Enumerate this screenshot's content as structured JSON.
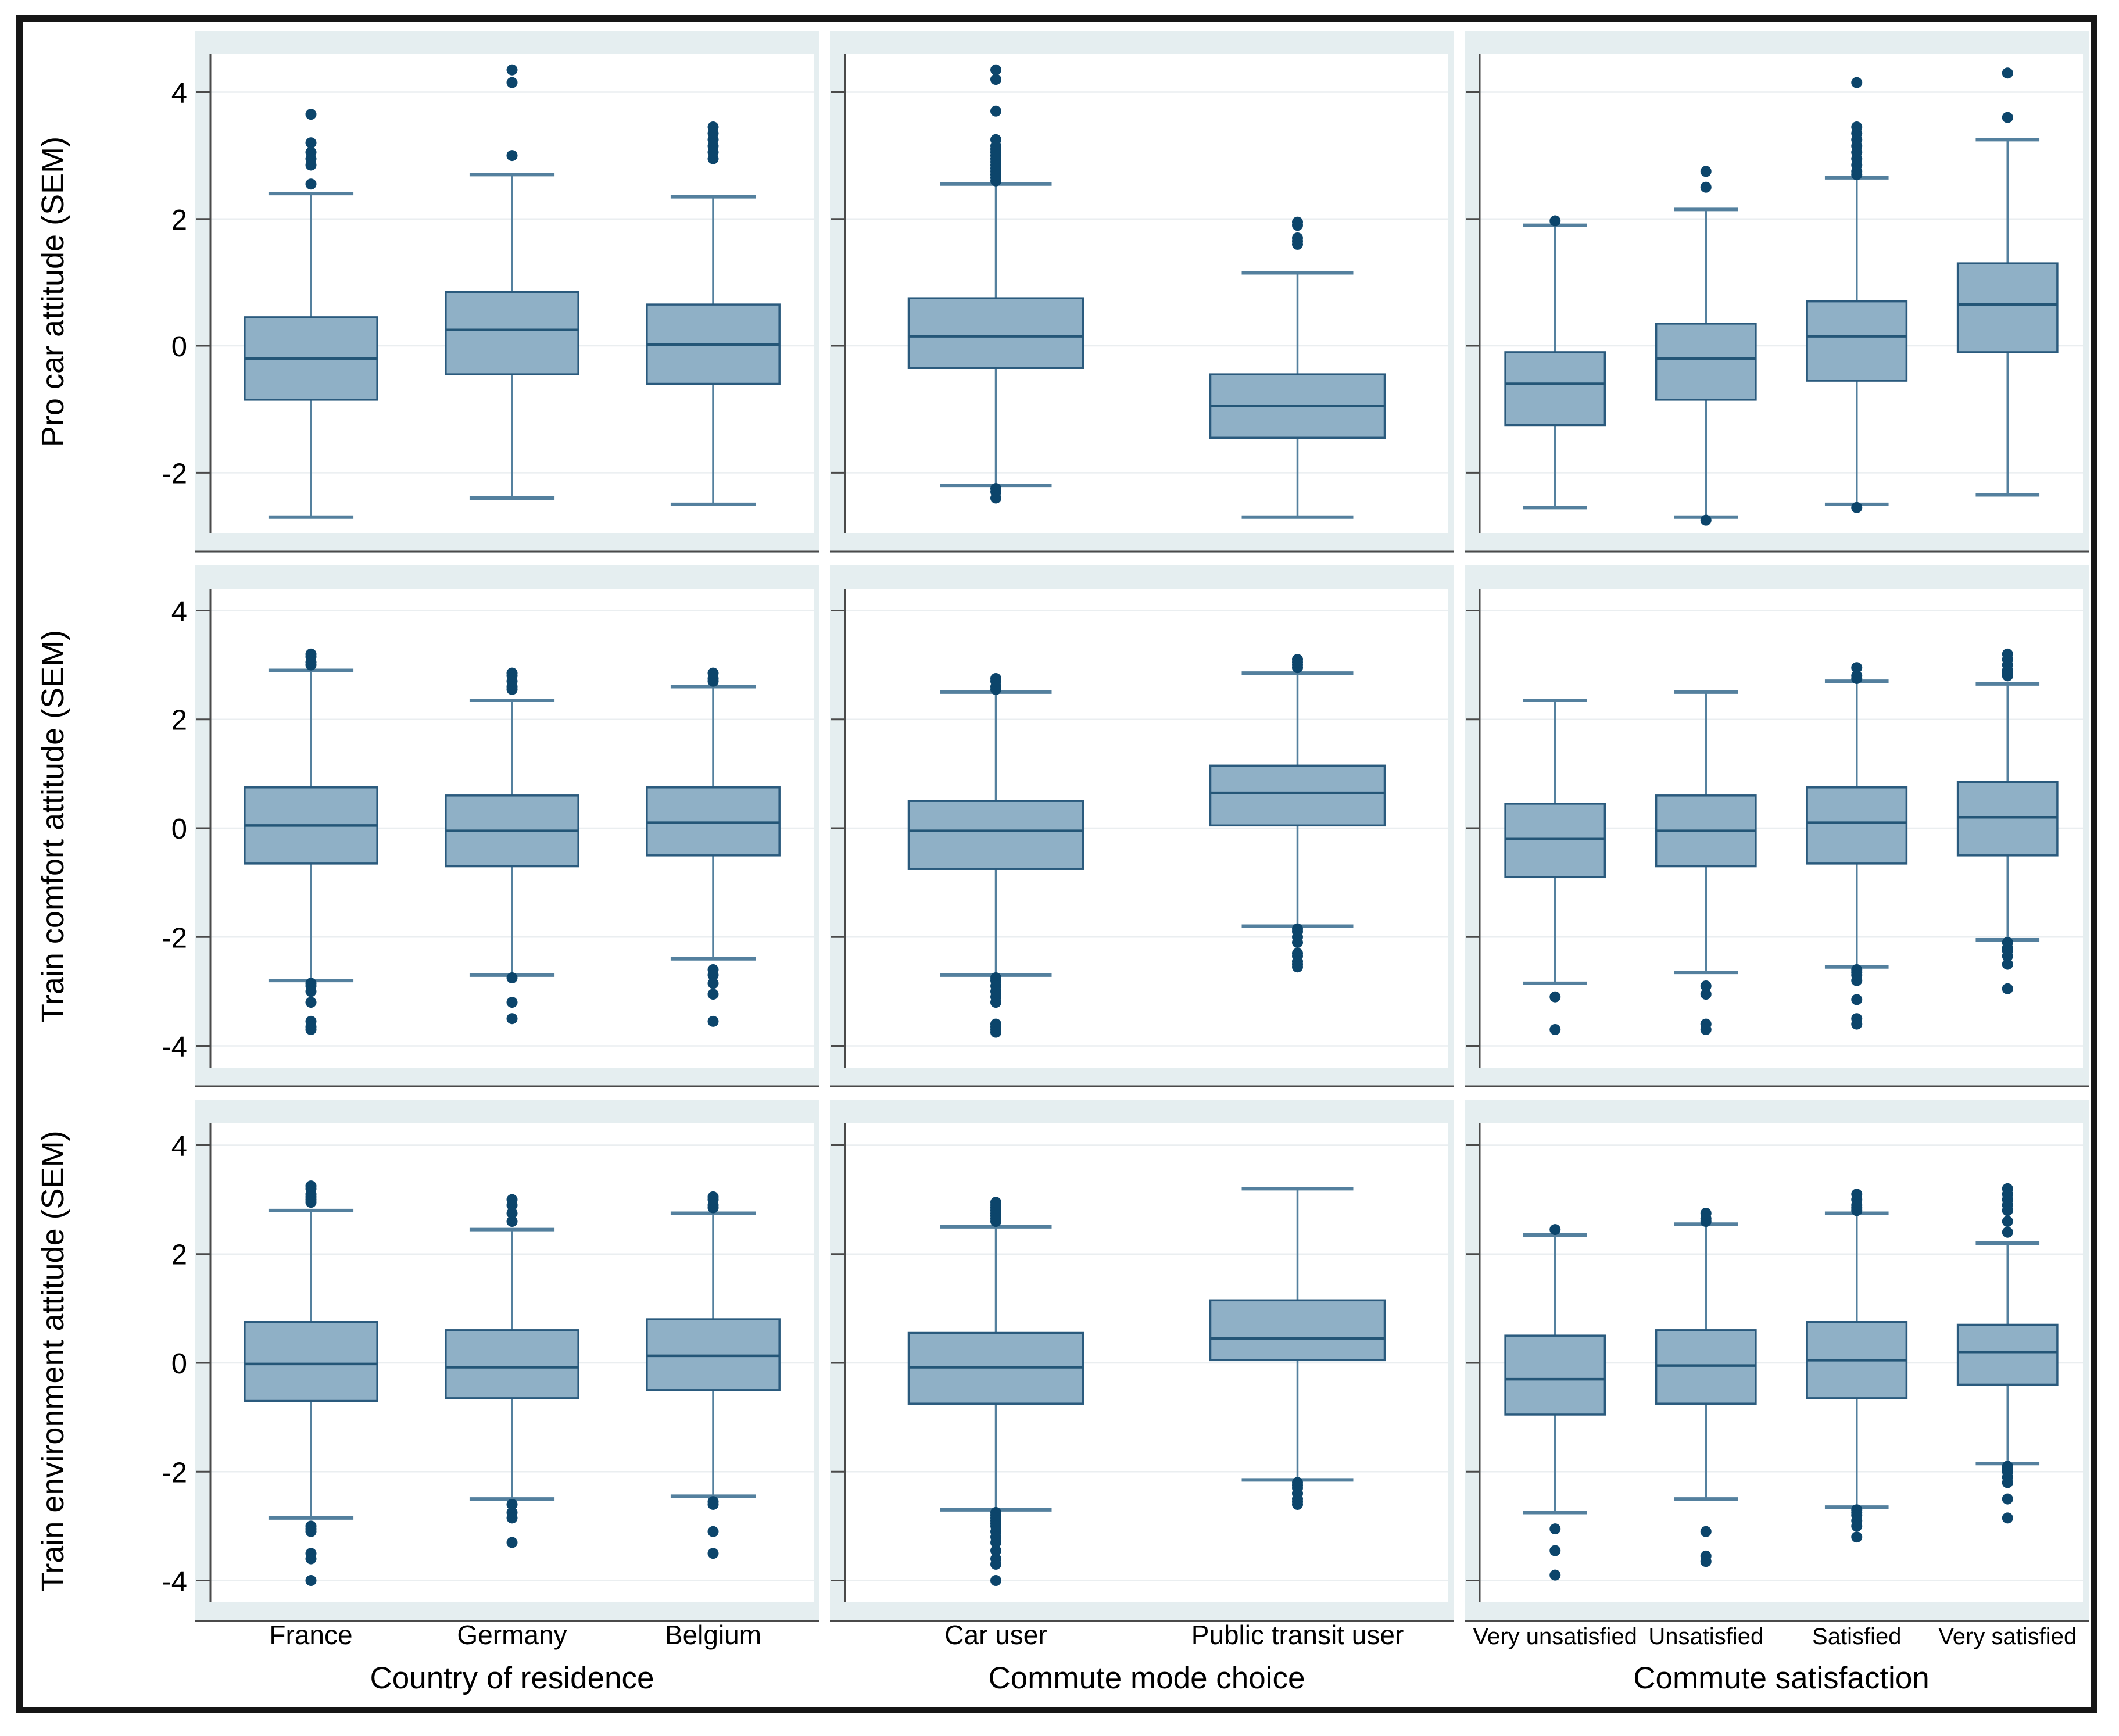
{
  "figure": {
    "kind": "boxplot-grid",
    "columns": [
      {
        "title": "Country of residence",
        "categories": [
          "France",
          "Germany",
          "Belgium"
        ]
      },
      {
        "title": "Commute mode choice",
        "categories": [
          "Car user",
          "Public transit user"
        ]
      },
      {
        "title": "Commute satisfaction",
        "categories": [
          "Very unsatisfied",
          "Unsatisfied",
          "Satisfied",
          "Very satisfied"
        ]
      }
    ]
  },
  "colors": {
    "box_fill": "#8fb0c6",
    "box_border": "#2a5a7d",
    "median": "#245677",
    "whisker": "#54809e",
    "outlier": "#0c456b",
    "facet_bg": "#e5eef0",
    "plot_bg": "#ffffff",
    "grid": "#eaeef0",
    "axis": "#4a4a4a",
    "frame": "#161616",
    "text": "#000000"
  },
  "chart_data": {
    "type": "boxplot-grid",
    "grid": "3 rows (outcome variables) x 3 columns (grouping variables)",
    "legend_position": "none",
    "rows": [
      {
        "ylabel": "Pro car attitude (SEM)",
        "yticks": [
          4,
          2,
          0,
          -2
        ],
        "ylim": [
          -2.95,
          4.6
        ],
        "panels": [
          {
            "xtitle": "Country of residence",
            "categories": [
              "France",
              "Germany",
              "Belgium"
            ],
            "boxes": [
              {
                "lo": -2.7,
                "q1": -0.85,
                "med": -0.2,
                "q3": 0.45,
                "hi": 2.4,
                "out_hi": [
                  2.55,
                  2.85,
                  2.95,
                  3.05,
                  3.2,
                  3.65
                ],
                "out_lo": []
              },
              {
                "lo": -2.4,
                "q1": -0.45,
                "med": 0.25,
                "q3": 0.85,
                "hi": 2.7,
                "out_hi": [
                  3.0,
                  4.15,
                  4.35
                ],
                "out_lo": []
              },
              {
                "lo": -2.5,
                "q1": -0.6,
                "med": 0.02,
                "q3": 0.65,
                "hi": 2.35,
                "out_hi": [
                  2.95,
                  3.05,
                  3.15,
                  3.25,
                  3.35,
                  3.45
                ],
                "out_lo": []
              }
            ]
          },
          {
            "xtitle": "Commute mode choice",
            "categories": [
              "Car user",
              "Public transit user"
            ],
            "boxes": [
              {
                "lo": -2.2,
                "q1": -0.35,
                "med": 0.15,
                "q3": 0.75,
                "hi": 2.55,
                "out_hi": [
                  2.6,
                  2.65,
                  2.7,
                  2.75,
                  2.8,
                  2.85,
                  2.9,
                  2.95,
                  3.0,
                  3.05,
                  3.1,
                  3.15,
                  3.25,
                  3.7,
                  4.2,
                  4.35
                ],
                "out_lo": [
                  -2.25,
                  -2.3,
                  -2.4
                ]
              },
              {
                "lo": -2.7,
                "q1": -1.45,
                "med": -0.95,
                "q3": -0.45,
                "hi": 1.15,
                "out_hi": [
                  1.6,
                  1.65,
                  1.7,
                  1.9,
                  1.95
                ],
                "out_lo": []
              }
            ]
          },
          {
            "xtitle": "Commute satisfaction",
            "categories": [
              "Very unsatisfied",
              "Unsatisfied",
              "Satisfied",
              "Very satisfied"
            ],
            "boxes": [
              {
                "lo": -2.55,
                "q1": -1.25,
                "med": -0.6,
                "q3": -0.1,
                "hi": 1.9,
                "out_hi": [
                  1.97
                ],
                "out_lo": []
              },
              {
                "lo": -2.7,
                "q1": -0.85,
                "med": -0.2,
                "q3": 0.35,
                "hi": 2.15,
                "out_hi": [
                  2.5,
                  2.75
                ],
                "out_lo": [
                  -2.75
                ]
              },
              {
                "lo": -2.5,
                "q1": -0.55,
                "med": 0.15,
                "q3": 0.7,
                "hi": 2.65,
                "out_hi": [
                  2.7,
                  2.75,
                  2.85,
                  2.95,
                  3.05,
                  3.15,
                  3.25,
                  3.35,
                  3.45,
                  4.15
                ],
                "out_lo": [
                  -2.55
                ]
              },
              {
                "lo": -2.35,
                "q1": -0.1,
                "med": 0.65,
                "q3": 1.3,
                "hi": 3.25,
                "out_hi": [
                  3.6,
                  4.3
                ],
                "out_lo": []
              }
            ]
          }
        ]
      },
      {
        "ylabel": "Train comfort attitude (SEM)",
        "yticks": [
          4,
          2,
          0,
          -2,
          -4
        ],
        "ylim": [
          -4.4,
          4.4
        ],
        "panels": [
          {
            "xtitle": "Country of residence",
            "categories": [
              "France",
              "Germany",
              "Belgium"
            ],
            "boxes": [
              {
                "lo": -2.8,
                "q1": -0.65,
                "med": 0.05,
                "q3": 0.75,
                "hi": 2.9,
                "out_hi": [
                  3.0,
                  3.05,
                  3.15,
                  3.2
                ],
                "out_lo": [
                  -2.85,
                  -2.9,
                  -3.0,
                  -3.2,
                  -3.55,
                  -3.65,
                  -3.7
                ]
              },
              {
                "lo": -2.7,
                "q1": -0.7,
                "med": -0.05,
                "q3": 0.6,
                "hi": 2.35,
                "out_hi": [
                  2.55,
                  2.6,
                  2.7,
                  2.8,
                  2.85
                ],
                "out_lo": [
                  -2.75,
                  -3.2,
                  -3.5
                ]
              },
              {
                "lo": -2.4,
                "q1": -0.5,
                "med": 0.1,
                "q3": 0.75,
                "hi": 2.6,
                "out_hi": [
                  2.7,
                  2.75,
                  2.85
                ],
                "out_lo": [
                  -2.6,
                  -2.7,
                  -2.85,
                  -3.05,
                  -3.55
                ]
              }
            ]
          },
          {
            "xtitle": "Commute mode choice",
            "categories": [
              "Car user",
              "Public transit user"
            ],
            "boxes": [
              {
                "lo": -2.7,
                "q1": -0.75,
                "med": -0.05,
                "q3": 0.5,
                "hi": 2.5,
                "out_hi": [
                  2.55,
                  2.6,
                  2.7,
                  2.75
                ],
                "out_lo": [
                  -2.75,
                  -2.8,
                  -2.9,
                  -3.0,
                  -3.1,
                  -3.2,
                  -3.6,
                  -3.65,
                  -3.7,
                  -3.75
                ]
              },
              {
                "lo": -1.8,
                "q1": 0.05,
                "med": 0.65,
                "q3": 1.15,
                "hi": 2.85,
                "out_hi": [
                  2.95,
                  3.0,
                  3.05,
                  3.1
                ],
                "out_lo": [
                  -1.85,
                  -1.9,
                  -2.0,
                  -2.1,
                  -2.3,
                  -2.35,
                  -2.45,
                  -2.5,
                  -2.55
                ]
              }
            ]
          },
          {
            "xtitle": "Commute satisfaction",
            "categories": [
              "Very unsatisfied",
              "Unsatisfied",
              "Satisfied",
              "Very satisfied"
            ],
            "boxes": [
              {
                "lo": -2.85,
                "q1": -0.9,
                "med": -0.2,
                "q3": 0.45,
                "hi": 2.35,
                "out_hi": [],
                "out_lo": [
                  -3.1,
                  -3.7
                ]
              },
              {
                "lo": -2.65,
                "q1": -0.7,
                "med": -0.05,
                "q3": 0.6,
                "hi": 2.5,
                "out_hi": [],
                "out_lo": [
                  -2.9,
                  -3.05,
                  -3.6,
                  -3.7
                ]
              },
              {
                "lo": -2.55,
                "q1": -0.65,
                "med": 0.1,
                "q3": 0.75,
                "hi": 2.7,
                "out_hi": [
                  2.75,
                  2.8,
                  2.95
                ],
                "out_lo": [
                  -2.6,
                  -2.65,
                  -2.7,
                  -2.8,
                  -3.15,
                  -3.5,
                  -3.6
                ]
              },
              {
                "lo": -2.05,
                "q1": -0.5,
                "med": 0.2,
                "q3": 0.85,
                "hi": 2.65,
                "out_hi": [
                  2.8,
                  2.85,
                  2.9,
                  3.0,
                  3.1,
                  3.2
                ],
                "out_lo": [
                  -2.1,
                  -2.2,
                  -2.25,
                  -2.35,
                  -2.5,
                  -2.95
                ]
              }
            ]
          }
        ]
      },
      {
        "ylabel": "Train environment attitude (SEM)",
        "yticks": [
          4,
          2,
          0,
          -2,
          -4
        ],
        "ylim": [
          -4.4,
          4.4
        ],
        "panels": [
          {
            "xtitle": "Country of residence",
            "categories": [
              "France",
              "Germany",
              "Belgium"
            ],
            "boxes": [
              {
                "lo": -2.85,
                "q1": -0.7,
                "med": -0.02,
                "q3": 0.75,
                "hi": 2.8,
                "out_hi": [
                  2.95,
                  3.0,
                  3.05,
                  3.1,
                  3.2,
                  3.25
                ],
                "out_lo": [
                  -3.0,
                  -3.05,
                  -3.1,
                  -3.5,
                  -3.6,
                  -4.0
                ]
              },
              {
                "lo": -2.5,
                "q1": -0.65,
                "med": -0.08,
                "q3": 0.6,
                "hi": 2.45,
                "out_hi": [
                  2.6,
                  2.75,
                  2.9,
                  3.0
                ],
                "out_lo": [
                  -2.6,
                  -2.75,
                  -2.85,
                  -3.3
                ]
              },
              {
                "lo": -2.45,
                "q1": -0.5,
                "med": 0.13,
                "q3": 0.8,
                "hi": 2.75,
                "out_hi": [
                  2.85,
                  2.9,
                  3.0,
                  3.05
                ],
                "out_lo": [
                  -2.55,
                  -2.6,
                  -3.1,
                  -3.5
                ]
              }
            ]
          },
          {
            "xtitle": "Commute mode choice",
            "categories": [
              "Car user",
              "Public transit user"
            ],
            "boxes": [
              {
                "lo": -2.7,
                "q1": -0.75,
                "med": -0.08,
                "q3": 0.55,
                "hi": 2.5,
                "out_hi": [
                  2.6,
                  2.65,
                  2.7,
                  2.75,
                  2.8,
                  2.85,
                  2.9,
                  2.95
                ],
                "out_lo": [
                  -2.75,
                  -2.8,
                  -2.85,
                  -2.9,
                  -2.95,
                  -3.0,
                  -3.1,
                  -3.2,
                  -3.3,
                  -3.45,
                  -3.6,
                  -3.7,
                  -4.0
                ]
              },
              {
                "lo": -2.15,
                "q1": 0.05,
                "med": 0.45,
                "q3": 1.15,
                "hi": 3.2,
                "out_hi": [],
                "out_lo": [
                  -2.2,
                  -2.25,
                  -2.3,
                  -2.4,
                  -2.5,
                  -2.55,
                  -2.6
                ]
              }
            ]
          },
          {
            "xtitle": "Commute satisfaction",
            "categories": [
              "Very unsatisfied",
              "Unsatisfied",
              "Satisfied",
              "Very satisfied"
            ],
            "boxes": [
              {
                "lo": -2.75,
                "q1": -0.95,
                "med": -0.3,
                "q3": 0.5,
                "hi": 2.35,
                "out_hi": [
                  2.45
                ],
                "out_lo": [
                  -3.05,
                  -3.45,
                  -3.9
                ]
              },
              {
                "lo": -2.5,
                "q1": -0.75,
                "med": -0.05,
                "q3": 0.6,
                "hi": 2.55,
                "out_hi": [
                  2.6,
                  2.65,
                  2.75
                ],
                "out_lo": [
                  -3.1,
                  -3.55,
                  -3.65
                ]
              },
              {
                "lo": -2.65,
                "q1": -0.65,
                "med": 0.05,
                "q3": 0.75,
                "hi": 2.75,
                "out_hi": [
                  2.8,
                  2.85,
                  2.9,
                  3.0,
                  3.1
                ],
                "out_lo": [
                  -2.7,
                  -2.75,
                  -2.8,
                  -2.9,
                  -3.0,
                  -3.2
                ]
              },
              {
                "lo": -1.85,
                "q1": -0.4,
                "med": 0.2,
                "q3": 0.7,
                "hi": 2.2,
                "out_hi": [
                  2.4,
                  2.6,
                  2.8,
                  2.9,
                  3.0,
                  3.1,
                  3.2
                ],
                "out_lo": [
                  -1.9,
                  -1.95,
                  -2.0,
                  -2.1,
                  -2.2,
                  -2.5,
                  -2.85
                ]
              }
            ]
          }
        ]
      }
    ]
  }
}
